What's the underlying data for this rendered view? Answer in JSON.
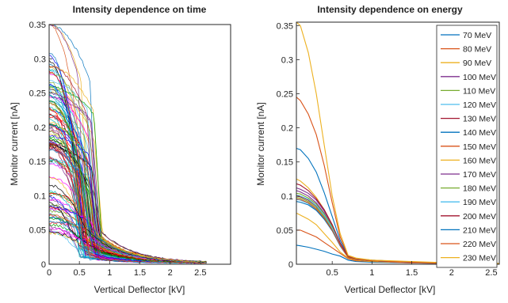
{
  "chart_data": [
    {
      "type": "line",
      "title": "Intensity dependence on time",
      "xlabel": "Vertical Deflector [kV]",
      "ylabel": "Monitor current [nA]",
      "xlim": [
        0,
        3
      ],
      "ylim": [
        0,
        0.35
      ],
      "xticks": [
        0,
        0.5,
        1,
        1.5,
        2,
        2.5
      ],
      "xtick_labels": [
        "0",
        "0.5",
        "1",
        "1.5",
        "2",
        "2.5"
      ],
      "yticks": [
        0,
        0.05,
        0.1,
        0.15,
        0.2,
        0.25,
        0.3,
        0.35
      ],
      "ytick_labels": [
        "0",
        "0.05",
        "0.1",
        "0.15",
        "0.2",
        "0.25",
        "0.3",
        "0.35"
      ],
      "grid": false,
      "legend": "none",
      "series_count": 120,
      "series_colors": [
        "#0072bd",
        "#d95319",
        "#edb120",
        "#7e2f8e",
        "#77ac30",
        "#4dbeee",
        "#a2142f",
        "#0000ff",
        "#ff0000",
        "#00a000",
        "#ff00ff",
        "#00bfbf",
        "#000000"
      ],
      "series_summary": {
        "initial_value_range": [
          0.04,
          0.35
        ],
        "drop_x_range": [
          0.35,
          0.75
        ],
        "tail_value_range": [
          0.005,
          0.05
        ],
        "tail_end_x": 2.6
      },
      "series_sample": [
        {
          "x": [
            0,
            0.2,
            0.4,
            0.6,
            0.8,
            1.0,
            1.5,
            2.0,
            2.6
          ],
          "y": [
            0.35,
            0.35,
            0.35,
            0.34,
            0.04,
            0.03,
            0.012,
            0.003,
            0.002
          ]
        },
        {
          "x": [
            0,
            0.2,
            0.4,
            0.6,
            0.8,
            1.0,
            1.5,
            2.0,
            2.6
          ],
          "y": [
            0.29,
            0.27,
            0.23,
            0.1,
            0.045,
            0.03,
            0.01,
            0.003,
            0.002
          ]
        },
        {
          "x": [
            0,
            0.2,
            0.4,
            0.6,
            0.8,
            1.0,
            1.5,
            2.0,
            2.6
          ],
          "y": [
            0.2,
            0.18,
            0.15,
            0.06,
            0.04,
            0.025,
            0.01,
            0.003,
            0.002
          ]
        },
        {
          "x": [
            0,
            0.2,
            0.4,
            0.6,
            0.8,
            1.0,
            1.5,
            2.0,
            2.6
          ],
          "y": [
            0.1,
            0.09,
            0.08,
            0.05,
            0.035,
            0.02,
            0.008,
            0.003,
            0.002
          ]
        },
        {
          "x": [
            0,
            0.2,
            0.4,
            0.6,
            0.8,
            1.0,
            1.5,
            2.0,
            2.6
          ],
          "y": [
            0.05,
            0.05,
            0.045,
            0.04,
            0.03,
            0.02,
            0.008,
            0.003,
            0.002
          ]
        }
      ]
    },
    {
      "type": "line",
      "title": "Intensity dependence on energy",
      "xlabel": "Vertical Deflector [kV]",
      "ylabel": "Monitor current [nA]",
      "xlim": [
        0.05,
        2.6
      ],
      "ylim": [
        0,
        0.355
      ],
      "xticks": [
        0.5,
        1,
        1.5,
        2,
        2.5
      ],
      "xtick_labels": [
        "0.5",
        "1",
        "1.5",
        "2",
        "2.5"
      ],
      "yticks": [
        0,
        0.05,
        0.1,
        0.15,
        0.2,
        0.25,
        0.3,
        0.35
      ],
      "ytick_labels": [
        "0",
        "0.05",
        "0.1",
        "0.15",
        "0.2",
        "0.25",
        "0.3",
        "0.35"
      ],
      "grid": false,
      "legend": "top-right",
      "x": [
        0.05,
        0.1,
        0.2,
        0.3,
        0.4,
        0.5,
        0.6,
        0.7,
        0.8,
        1.0,
        1.5,
        2.0,
        2.6
      ],
      "series": [
        {
          "name": "70 MeV",
          "color": "#0072bd",
          "values": [
            0.028,
            0.027,
            0.025,
            0.022,
            0.019,
            0.015,
            0.012,
            0.006,
            0.004,
            0.003,
            0.002,
            0.001,
            0.001
          ]
        },
        {
          "name": "80 MeV",
          "color": "#d95319",
          "values": [
            0.05,
            0.05,
            0.045,
            0.04,
            0.032,
            0.024,
            0.016,
            0.008,
            0.005,
            0.004,
            0.002,
            0.001,
            0.001
          ]
        },
        {
          "name": "90 MeV",
          "color": "#edb120",
          "values": [
            0.075,
            0.072,
            0.066,
            0.058,
            0.045,
            0.032,
            0.018,
            0.009,
            0.006,
            0.004,
            0.003,
            0.002,
            0.001
          ]
        },
        {
          "name": "100 MeV",
          "color": "#7e2f8e",
          "values": [
            0.108,
            0.106,
            0.1,
            0.09,
            0.075,
            0.055,
            0.03,
            0.01,
            0.007,
            0.005,
            0.003,
            0.002,
            0.001
          ]
        },
        {
          "name": "110 MeV",
          "color": "#77ac30",
          "values": [
            0.098,
            0.097,
            0.092,
            0.083,
            0.07,
            0.052,
            0.028,
            0.01,
            0.007,
            0.005,
            0.003,
            0.002,
            0.001
          ]
        },
        {
          "name": "120 MeV",
          "color": "#4dbeee",
          "values": [
            0.095,
            0.094,
            0.089,
            0.08,
            0.067,
            0.05,
            0.027,
            0.01,
            0.007,
            0.005,
            0.003,
            0.002,
            0.001
          ]
        },
        {
          "name": "130 MeV",
          "color": "#a2142f",
          "values": [
            0.1,
            0.099,
            0.094,
            0.085,
            0.072,
            0.054,
            0.03,
            0.011,
            0.007,
            0.005,
            0.003,
            0.002,
            0.001
          ]
        },
        {
          "name": "140 MeV",
          "color": "#0072bd",
          "values": [
            0.17,
            0.168,
            0.155,
            0.135,
            0.105,
            0.07,
            0.035,
            0.012,
            0.008,
            0.006,
            0.003,
            0.002,
            0.001
          ]
        },
        {
          "name": "150 MeV",
          "color": "#d95319",
          "values": [
            0.245,
            0.24,
            0.22,
            0.19,
            0.145,
            0.09,
            0.04,
            0.012,
            0.008,
            0.006,
            0.003,
            0.002,
            0.001
          ]
        },
        {
          "name": "160 MeV",
          "color": "#edb120",
          "values": [
            0.125,
            0.122,
            0.112,
            0.098,
            0.08,
            0.058,
            0.03,
            0.011,
            0.007,
            0.005,
            0.003,
            0.002,
            0.001
          ]
        },
        {
          "name": "170 MeV",
          "color": "#7e2f8e",
          "values": [
            0.112,
            0.11,
            0.104,
            0.094,
            0.078,
            0.057,
            0.031,
            0.011,
            0.007,
            0.005,
            0.003,
            0.002,
            0.001
          ]
        },
        {
          "name": "180 MeV",
          "color": "#77ac30",
          "values": [
            0.104,
            0.103,
            0.097,
            0.088,
            0.074,
            0.055,
            0.03,
            0.011,
            0.007,
            0.005,
            0.003,
            0.002,
            0.001
          ]
        },
        {
          "name": "190 MeV",
          "color": "#4dbeee",
          "values": [
            0.101,
            0.1,
            0.095,
            0.086,
            0.072,
            0.053,
            0.029,
            0.01,
            0.007,
            0.005,
            0.003,
            0.002,
            0.001
          ]
        },
        {
          "name": "200 MeV",
          "color": "#a2142f",
          "values": [
            0.118,
            0.116,
            0.108,
            0.096,
            0.08,
            0.058,
            0.031,
            0.011,
            0.007,
            0.005,
            0.003,
            0.002,
            0.001
          ]
        },
        {
          "name": "210 MeV",
          "color": "#0072bd",
          "values": [
            0.092,
            0.091,
            0.087,
            0.079,
            0.066,
            0.049,
            0.027,
            0.01,
            0.007,
            0.005,
            0.003,
            0.002,
            0.001
          ]
        },
        {
          "name": "220 MeV",
          "color": "#d95319",
          "values": [
            0.096,
            0.095,
            0.09,
            0.081,
            0.068,
            0.05,
            0.028,
            0.01,
            0.007,
            0.005,
            0.003,
            0.002,
            0.001
          ]
        },
        {
          "name": "230 MeV",
          "color": "#edb120",
          "values": [
            0.355,
            0.35,
            0.31,
            0.25,
            0.175,
            0.1,
            0.045,
            0.013,
            0.009,
            0.006,
            0.004,
            0.002,
            0.001
          ]
        }
      ]
    }
  ]
}
